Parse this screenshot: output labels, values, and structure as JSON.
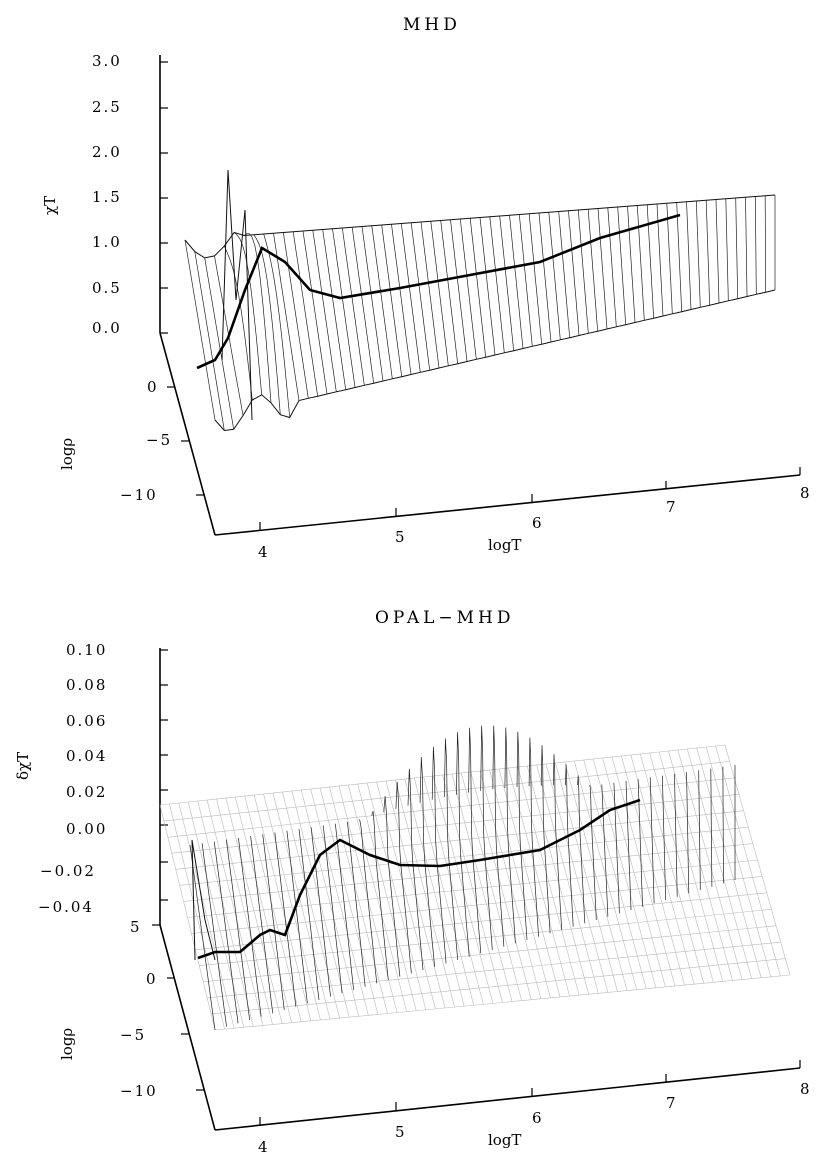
{
  "chart_data": [
    {
      "type": "surface",
      "title": "MHD",
      "zlabel": "χT",
      "xlabel": "logT",
      "ylabel": "logρ",
      "x_ticks": [
        "4",
        "5",
        "6",
        "7",
        "8"
      ],
      "y_ticks": [
        "0",
        "−5",
        "−10"
      ],
      "z_ticks": [
        "0.0",
        "0.5",
        "1.0",
        "1.5",
        "2.0",
        "2.5",
        "3.0"
      ],
      "xlim": [
        3.75,
        8
      ],
      "ylim": [
        -12,
        5
      ],
      "zlim": [
        0,
        3
      ],
      "highlight_curve": {
        "x": [
          3.75,
          3.85,
          3.9,
          4.0,
          4.2,
          4.5,
          5.0,
          5.5,
          6.0,
          6.5,
          7.0
        ],
        "y": [
          1.8,
          1.2,
          1.1,
          0.6,
          0.2,
          -0.3,
          -1.0,
          -1.6,
          -2.3,
          -3.0,
          -3.7
        ],
        "z": [
          0.3,
          0.4,
          0.6,
          1.0,
          0.7,
          0.5,
          0.55,
          0.62,
          0.68,
          0.85,
          1.0
        ]
      }
    },
    {
      "type": "surface",
      "title": "OPAL−MHD",
      "zlabel": "δχT",
      "xlabel": "logT",
      "ylabel": "logρ",
      "x_ticks": [
        "4",
        "5",
        "6",
        "7",
        "8"
      ],
      "y_ticks": [
        "5",
        "0",
        "−5",
        "−10"
      ],
      "z_ticks": [
        "−0.04",
        "−0.02",
        "0.00",
        "0.02",
        "0.04",
        "0.06",
        "0.08",
        "0.10"
      ],
      "xlim": [
        3.75,
        8
      ],
      "ylim": [
        -12,
        5
      ],
      "zlim": [
        -0.04,
        0.1
      ],
      "highlight_curve": {
        "x": [
          3.75,
          3.9,
          4.0,
          4.1,
          4.3,
          4.6,
          5.0,
          5.5,
          6.0,
          6.5,
          7.0
        ],
        "y": [
          1.8,
          1.1,
          0.6,
          0.3,
          -0.1,
          -0.5,
          -1.0,
          -1.6,
          -2.3,
          -3.0,
          -3.7
        ],
        "z": [
          -0.03,
          -0.028,
          -0.025,
          -0.02,
          0.0,
          0.005,
          -0.005,
          -0.002,
          0.0,
          0.01,
          0.02
        ]
      }
    }
  ]
}
